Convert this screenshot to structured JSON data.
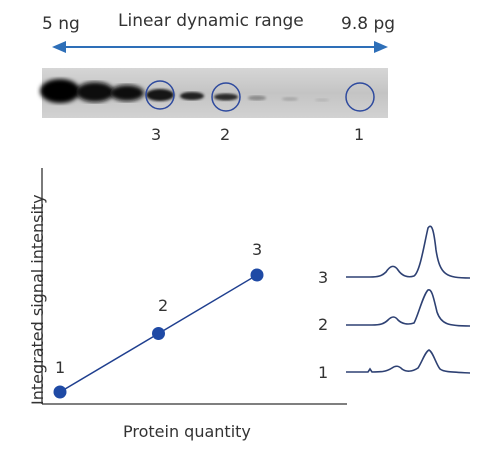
{
  "header": {
    "range_start": "5 ng",
    "range_title": "Linear dynamic range",
    "range_end": "9.8 pg"
  },
  "blot": {
    "band_labels": [
      "1",
      "2",
      "3"
    ],
    "colors": {
      "band": "#0c0c0c",
      "circle": "#2e4a9e",
      "background": "#c8c8c8"
    }
  },
  "plot": {
    "ylabel": "Integrated signal intensity",
    "xlabel": "Protein quantity",
    "points": [
      {
        "label": "1",
        "x": 1,
        "y": 1
      },
      {
        "label": "2",
        "x": 2,
        "y": 2
      },
      {
        "label": "3",
        "x": 3,
        "y": 3
      }
    ],
    "colors": {
      "line": "#1f3f8f",
      "point": "#1f4aa5",
      "axis": "#333333"
    }
  },
  "traces": {
    "labels": [
      "3",
      "2",
      "1"
    ],
    "color": "#2e4173"
  }
}
